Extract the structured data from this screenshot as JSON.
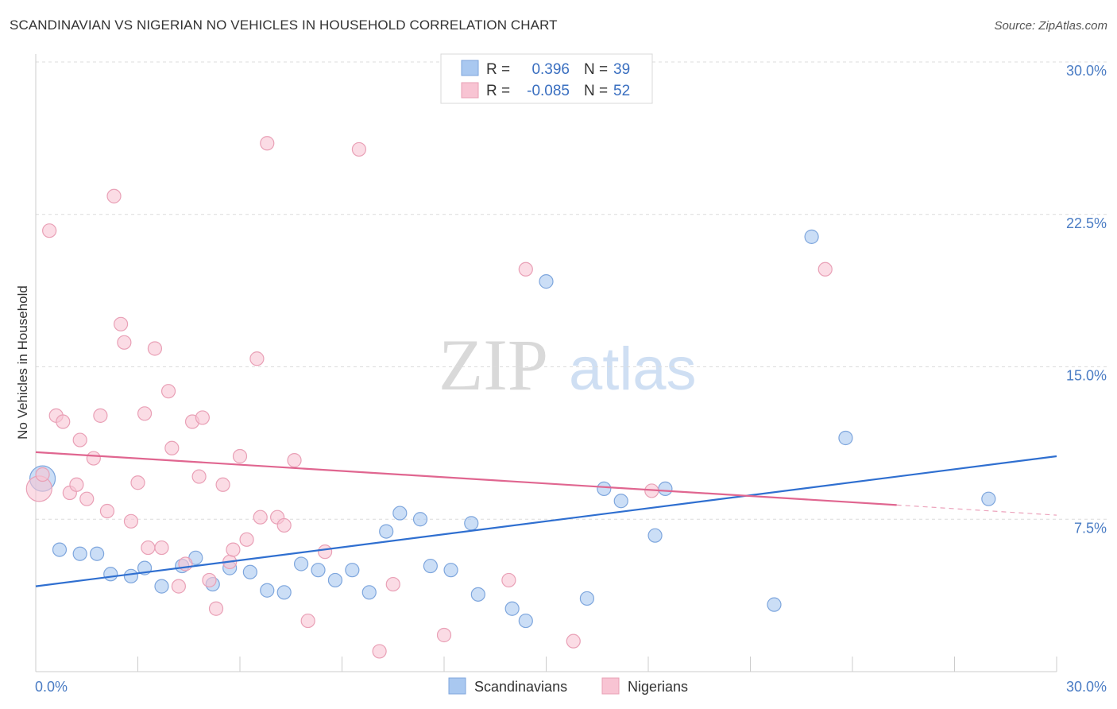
{
  "header": {
    "title": "SCANDINAVIAN VS NIGERIAN NO VEHICLES IN HOUSEHOLD CORRELATION CHART",
    "source": "Source: ZipAtlas.com"
  },
  "watermark": {
    "zip": "ZIP",
    "atlas": "atlas"
  },
  "legend_top": [
    {
      "r_label": "R =",
      "r_value": "0.396",
      "n_label": "N =",
      "n_value": "39",
      "color": "#a9c8f0",
      "stroke": "#7ea6dd"
    },
    {
      "r_label": "R =",
      "r_value": "-0.085",
      "n_label": "N =",
      "n_value": "52",
      "color": "#f8c4d3",
      "stroke": "#e9a0b6"
    }
  ],
  "legend_bottom": [
    {
      "label": "Scandinavians",
      "color": "#a9c8f0",
      "stroke": "#7ea6dd"
    },
    {
      "label": "Nigerians",
      "color": "#f8c4d3",
      "stroke": "#e9a0b6"
    }
  ],
  "chart_data": {
    "type": "scatter",
    "title": "SCANDINAVIAN VS NIGERIAN NO VEHICLES IN HOUSEHOLD CORRELATION CHART",
    "xlabel": "",
    "ylabel": "No Vehicles in Household",
    "xlim": [
      0,
      30
    ],
    "ylim": [
      0,
      30
    ],
    "x_tick_labels": [
      "0.0%",
      "30.0%"
    ],
    "y_ticks": [
      7.5,
      15.0,
      22.5,
      30.0
    ],
    "y_tick_labels": [
      "7.5%",
      "15.0%",
      "22.5%",
      "30.0%"
    ],
    "grid": "horizontal dashed",
    "legend_position": "top-center",
    "series": [
      {
        "name": "Scandinavians",
        "color": "#a9c8f0",
        "stroke": "#7ea6dd",
        "line_color": "#2f6fd0",
        "trend": {
          "x": [
            0,
            30
          ],
          "y": [
            4.2,
            10.6
          ]
        },
        "points": [
          {
            "x": 0.2,
            "y": 9.5,
            "big": true
          },
          {
            "x": 0.7,
            "y": 6.0
          },
          {
            "x": 1.3,
            "y": 5.8
          },
          {
            "x": 1.8,
            "y": 5.8
          },
          {
            "x": 2.2,
            "y": 4.8
          },
          {
            "x": 2.8,
            "y": 4.7
          },
          {
            "x": 3.2,
            "y": 5.1
          },
          {
            "x": 3.7,
            "y": 4.2
          },
          {
            "x": 4.3,
            "y": 5.2
          },
          {
            "x": 4.7,
            "y": 5.6
          },
          {
            "x": 5.2,
            "y": 4.3
          },
          {
            "x": 5.7,
            "y": 5.1
          },
          {
            "x": 6.3,
            "y": 4.9
          },
          {
            "x": 6.8,
            "y": 4.0
          },
          {
            "x": 7.3,
            "y": 3.9
          },
          {
            "x": 7.8,
            "y": 5.3
          },
          {
            "x": 8.3,
            "y": 5.0
          },
          {
            "x": 8.8,
            "y": 4.5
          },
          {
            "x": 9.3,
            "y": 5.0
          },
          {
            "x": 9.8,
            "y": 3.9
          },
          {
            "x": 10.3,
            "y": 6.9
          },
          {
            "x": 10.7,
            "y": 7.8
          },
          {
            "x": 11.3,
            "y": 7.5
          },
          {
            "x": 11.6,
            "y": 5.2
          },
          {
            "x": 12.2,
            "y": 5.0
          },
          {
            "x": 12.8,
            "y": 7.3
          },
          {
            "x": 13.0,
            "y": 3.8
          },
          {
            "x": 14.0,
            "y": 3.1
          },
          {
            "x": 14.4,
            "y": 2.5
          },
          {
            "x": 15.0,
            "y": 19.2
          },
          {
            "x": 16.2,
            "y": 3.6
          },
          {
            "x": 16.7,
            "y": 9.0
          },
          {
            "x": 17.2,
            "y": 8.4
          },
          {
            "x": 18.2,
            "y": 6.7
          },
          {
            "x": 18.5,
            "y": 9.0
          },
          {
            "x": 21.7,
            "y": 3.3
          },
          {
            "x": 22.8,
            "y": 21.4
          },
          {
            "x": 23.8,
            "y": 11.5
          },
          {
            "x": 28.0,
            "y": 8.5
          }
        ]
      },
      {
        "name": "Nigerians",
        "color": "#f8c4d3",
        "stroke": "#e9a0b6",
        "line_color": "#e06690",
        "trend": {
          "x": [
            0,
            25.3
          ],
          "y": [
            10.8,
            8.2
          ]
        },
        "trend_dashed": {
          "x": [
            25.3,
            30
          ],
          "y": [
            8.2,
            7.7
          ]
        },
        "points": [
          {
            "x": 0.1,
            "y": 9.0,
            "big": true
          },
          {
            "x": 0.2,
            "y": 9.7
          },
          {
            "x": 0.4,
            "y": 21.7
          },
          {
            "x": 0.6,
            "y": 12.6
          },
          {
            "x": 0.8,
            "y": 12.3
          },
          {
            "x": 1.0,
            "y": 8.8
          },
          {
            "x": 1.2,
            "y": 9.2
          },
          {
            "x": 1.3,
            "y": 11.4
          },
          {
            "x": 1.5,
            "y": 8.5
          },
          {
            "x": 1.7,
            "y": 10.5
          },
          {
            "x": 1.9,
            "y": 12.6
          },
          {
            "x": 2.1,
            "y": 7.9
          },
          {
            "x": 2.3,
            "y": 23.4
          },
          {
            "x": 2.5,
            "y": 17.1
          },
          {
            "x": 2.6,
            "y": 16.2
          },
          {
            "x": 2.8,
            "y": 7.4
          },
          {
            "x": 3.0,
            "y": 9.3
          },
          {
            "x": 3.2,
            "y": 12.7
          },
          {
            "x": 3.3,
            "y": 6.1
          },
          {
            "x": 3.5,
            "y": 15.9
          },
          {
            "x": 3.7,
            "y": 6.1
          },
          {
            "x": 3.9,
            "y": 13.8
          },
          {
            "x": 4.0,
            "y": 11.0
          },
          {
            "x": 4.2,
            "y": 4.2
          },
          {
            "x": 4.4,
            "y": 5.3
          },
          {
            "x": 4.6,
            "y": 12.3
          },
          {
            "x": 4.8,
            "y": 9.6
          },
          {
            "x": 4.9,
            "y": 12.5
          },
          {
            "x": 5.1,
            "y": 4.5
          },
          {
            "x": 5.3,
            "y": 3.1
          },
          {
            "x": 5.5,
            "y": 9.2
          },
          {
            "x": 5.7,
            "y": 5.4
          },
          {
            "x": 5.8,
            "y": 6.0
          },
          {
            "x": 6.0,
            "y": 10.6
          },
          {
            "x": 6.2,
            "y": 6.5
          },
          {
            "x": 6.5,
            "y": 15.4
          },
          {
            "x": 6.6,
            "y": 7.6
          },
          {
            "x": 6.8,
            "y": 26.0
          },
          {
            "x": 7.1,
            "y": 7.6
          },
          {
            "x": 7.3,
            "y": 7.2
          },
          {
            "x": 7.6,
            "y": 10.4
          },
          {
            "x": 8.0,
            "y": 2.5
          },
          {
            "x": 8.5,
            "y": 5.9
          },
          {
            "x": 9.5,
            "y": 25.7
          },
          {
            "x": 10.1,
            "y": 1.0
          },
          {
            "x": 10.5,
            "y": 4.3
          },
          {
            "x": 12.0,
            "y": 1.8
          },
          {
            "x": 13.9,
            "y": 4.5
          },
          {
            "x": 14.4,
            "y": 19.8
          },
          {
            "x": 15.8,
            "y": 1.5
          },
          {
            "x": 18.1,
            "y": 8.9
          },
          {
            "x": 23.2,
            "y": 19.8
          }
        ]
      }
    ]
  }
}
